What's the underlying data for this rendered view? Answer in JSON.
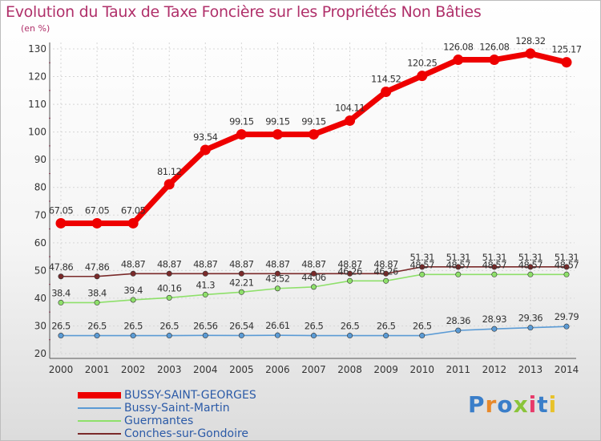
{
  "chart_data": {
    "type": "line",
    "title": "Evolution du Taux de Taxe Foncière sur les Propriétés Non Bâties",
    "ylabel": "(en %)",
    "xlabel": "",
    "ylim": [
      20,
      130
    ],
    "yticks": [
      20,
      30,
      40,
      50,
      60,
      70,
      80,
      90,
      100,
      110,
      120,
      130
    ],
    "grid": true,
    "x": [
      "2000",
      "2001",
      "2002",
      "2003",
      "2004",
      "2005",
      "2006",
      "2007",
      "2008",
      "2009",
      "2010",
      "2011",
      "2012",
      "2013",
      "2014"
    ],
    "series": [
      {
        "name": "BUSSY-SAINT-GEORGES",
        "color": "#ee0000",
        "values": [
          67.05,
          67.05,
          67.05,
          81.12,
          93.54,
          99.15,
          99.15,
          99.15,
          104.11,
          114.52,
          120.25,
          126.08,
          126.08,
          128.32,
          125.17
        ],
        "labels": [
          "67.05",
          "67.05",
          "67.05",
          "81.12",
          "93.54",
          "99.15",
          "99.15",
          "99.15",
          "104.11",
          "114.52",
          "120.25",
          "126.08",
          "126.08",
          "128.32",
          "125.17"
        ]
      },
      {
        "name": "Bussy-Saint-Martin",
        "color": "#5b9bd5",
        "values": [
          26.5,
          26.5,
          26.5,
          26.5,
          26.56,
          26.54,
          26.61,
          26.5,
          26.5,
          26.5,
          26.5,
          28.36,
          28.93,
          29.36,
          29.79
        ],
        "labels": [
          "26.5",
          "26.5",
          "26.5",
          "26.5",
          "26.56",
          "26.54",
          "26.61",
          "26.5",
          "26.5",
          "26.5",
          "26.5",
          "28.36",
          "28.93",
          "29.36",
          "29.79"
        ]
      },
      {
        "name": "Guermantes",
        "color": "#8ee06a",
        "values": [
          38.4,
          38.4,
          39.4,
          40.16,
          41.3,
          42.21,
          43.52,
          44.06,
          46.26,
          46.26,
          48.57,
          48.57,
          48.57,
          48.57,
          48.57
        ],
        "labels": [
          "38.4",
          "38.4",
          "39.4",
          "40.16",
          "41.3",
          "42.21",
          "43.52",
          "44.06",
          "46.26",
          "46.26",
          "48.57",
          "48.57",
          "48.57",
          "48.57",
          "48.57"
        ]
      },
      {
        "name": "Conches-sur-Gondoire",
        "color": "#7a2a2a",
        "values": [
          47.86,
          47.86,
          48.87,
          48.87,
          48.87,
          48.87,
          48.87,
          48.87,
          48.87,
          48.87,
          51.31,
          51.31,
          51.31,
          51.31,
          51.31
        ],
        "labels": [
          "47.86",
          "47.86",
          "48.87",
          "48.87",
          "48.87",
          "48.87",
          "48.87",
          "48.87",
          "48.87",
          "48.87",
          "51.31",
          "51.31",
          "51.31",
          "51.31",
          "51.31"
        ]
      }
    ]
  },
  "logo": {
    "text": "Proxiti",
    "letters": [
      "P",
      "r",
      "o",
      "x",
      "i",
      "t",
      "i"
    ],
    "colors": [
      "#3a7ec9",
      "#e8892a",
      "#3a7ec9",
      "#8ac43a",
      "#e83a6a",
      "#3a7ec9",
      "#e8c22a"
    ]
  }
}
